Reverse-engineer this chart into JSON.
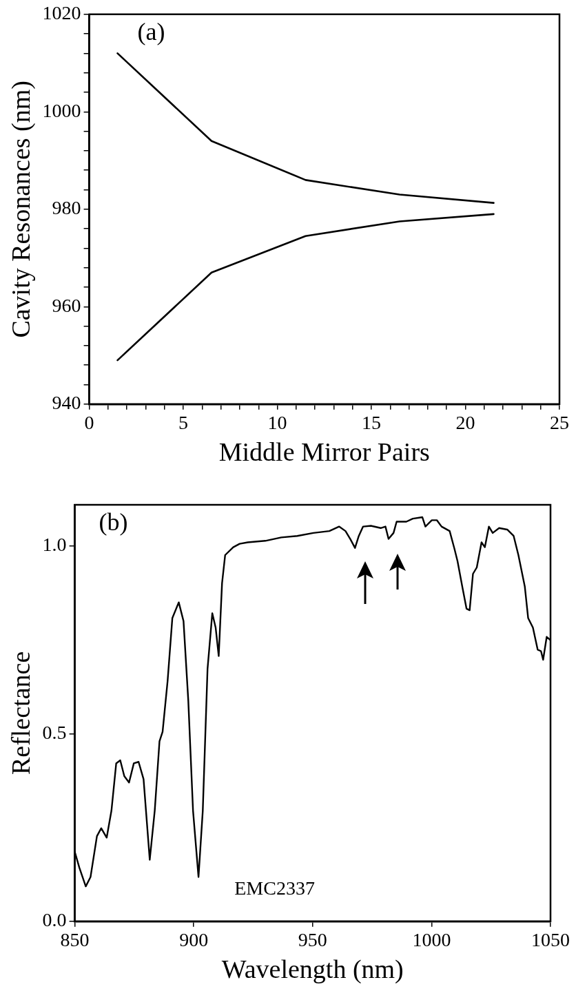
{
  "chart_data": [
    {
      "type": "line",
      "xlabel": "Middle Mirror Pairs",
      "ylabel": "Cavity Resonances (nm)",
      "annotations": [
        "(a)"
      ],
      "xlim": [
        0,
        25
      ],
      "ylim": [
        940,
        1020
      ],
      "xticks": [
        0,
        {
          "value": 1,
          "label": null
        },
        {
          "value": 2,
          "label": null
        },
        {
          "value": 3,
          "label": null
        },
        {
          "value": 4,
          "label": null
        },
        5,
        {
          "value": 6,
          "label": null
        },
        {
          "value": 7,
          "label": null
        },
        {
          "value": 8,
          "label": null
        },
        {
          "value": 9,
          "label": null
        },
        10,
        {
          "value": 11,
          "label": null
        },
        {
          "value": 12,
          "label": null
        },
        {
          "value": 13,
          "label": null
        },
        {
          "value": 14,
          "label": null
        },
        15,
        {
          "value": 16,
          "label": null
        },
        {
          "value": 17,
          "label": null
        },
        {
          "value": 18,
          "label": null
        },
        {
          "value": 19,
          "label": null
        },
        20,
        {
          "value": 21,
          "label": null
        },
        {
          "value": 22,
          "label": null
        },
        {
          "value": 23,
          "label": null
        },
        {
          "value": 24,
          "label": null
        },
        25
      ],
      "yticks": [
        940,
        {
          "value": 944,
          "label": null
        },
        {
          "value": 948,
          "label": null
        },
        {
          "value": 952,
          "label": null
        },
        {
          "value": 956,
          "label": null
        },
        960,
        {
          "value": 964,
          "label": null
        },
        {
          "value": 968,
          "label": null
        },
        {
          "value": 972,
          "label": null
        },
        {
          "value": 976,
          "label": null
        },
        980,
        {
          "value": 984,
          "label": null
        },
        {
          "value": 988,
          "label": null
        },
        {
          "value": 992,
          "label": null
        },
        {
          "value": 996,
          "label": null
        },
        1000,
        {
          "value": 1004,
          "label": null
        },
        {
          "value": 1008,
          "label": null
        },
        {
          "value": 1012,
          "label": null
        },
        {
          "value": 1016,
          "label": null
        },
        1020
      ],
      "grid": false,
      "legend": false,
      "marker": "none",
      "line_style": "solid",
      "series": [
        {
          "color": "#000000",
          "x": [
            1.5,
            6.5,
            11.5,
            16.5,
            21.5
          ],
          "values": [
            1012,
            994,
            986,
            983,
            981.3
          ]
        },
        {
          "color": "#000000",
          "x": [
            1.5,
            6.5,
            11.5,
            16.5,
            21.5
          ],
          "values": [
            949,
            967,
            974.5,
            977.5,
            979
          ]
        }
      ]
    },
    {
      "type": "line",
      "xlabel": "Wavelength (nm)",
      "ylabel": "Reflectance",
      "annotations": [
        "(b)",
        "EMC2337"
      ],
      "xlim": [
        850,
        1050
      ],
      "ylim": [
        0,
        1.11
      ],
      "xticks": [
        850,
        900,
        950,
        1000,
        1050
      ],
      "yticks": [
        {
          "value": 0,
          "label": "0.0"
        },
        {
          "value": 0.5,
          "label": "0.5"
        },
        {
          "value": 1,
          "label": "1.0"
        }
      ],
      "grid": false,
      "legend": false,
      "marker": "none",
      "line_style": "solid",
      "series": [
        {
          "color": "#000000",
          "x": [
            850,
            851.9,
            854.6,
            856.6,
            859.3,
            861.1,
            863.4,
            865.4,
            867.4,
            869.1,
            870.8,
            872.8,
            874.8,
            876.8,
            878.9,
            881.5,
            883.6,
            885.6,
            886.9,
            889,
            891,
            893.7,
            895.7,
            897.7,
            899.7,
            902,
            903.8,
            905.8,
            907.8,
            909.2,
            910.5,
            911.9,
            913.2,
            916.6,
            919.3,
            922.7,
            930.1,
            936.8,
            943.5,
            950.3,
            957,
            961.1,
            963.8,
            965.8,
            967.8,
            969.4,
            971.2,
            974.5,
            978.6,
            980.6,
            981.9,
            984,
            985.3,
            989.4,
            992.1,
            996.1,
            997.4,
            1000.1,
            1002.2,
            1004.2,
            1007.6,
            1009.6,
            1010.9,
            1012.9,
            1014.7,
            1016,
            1017.4,
            1019,
            1021,
            1022.4,
            1024.1,
            1025.7,
            1028.4,
            1031.8,
            1034.5,
            1036.5,
            1039.2,
            1040.6,
            1042.6,
            1044.6,
            1046,
            1046.9,
            1048.4,
            1050
          ],
          "values": [
            0.185,
            0.143,
            0.093,
            0.118,
            0.227,
            0.248,
            0.223,
            0.295,
            0.421,
            0.429,
            0.387,
            0.37,
            0.421,
            0.425,
            0.379,
            0.164,
            0.295,
            0.48,
            0.505,
            0.64,
            0.808,
            0.85,
            0.8,
            0.589,
            0.295,
            0.118,
            0.295,
            0.673,
            0.821,
            0.783,
            0.707,
            0.901,
            0.976,
            0.997,
            1.006,
            1.01,
            1.014,
            1.023,
            1.027,
            1.035,
            1.04,
            1.052,
            1.04,
            1.019,
            0.995,
            1.027,
            1.052,
            1.054,
            1.048,
            1.052,
            1.019,
            1.035,
            1.065,
            1.065,
            1.073,
            1.077,
            1.052,
            1.069,
            1.069,
            1.052,
            1.04,
            0.993,
            0.96,
            0.892,
            0.833,
            0.829,
            0.926,
            0.943,
            1.01,
            0.997,
            1.052,
            1.035,
            1.048,
            1.044,
            1.027,
            0.976,
            0.892,
            0.808,
            0.783,
            0.724,
            0.72,
            0.697,
            0.758,
            0.749
          ]
        }
      ]
    }
  ]
}
